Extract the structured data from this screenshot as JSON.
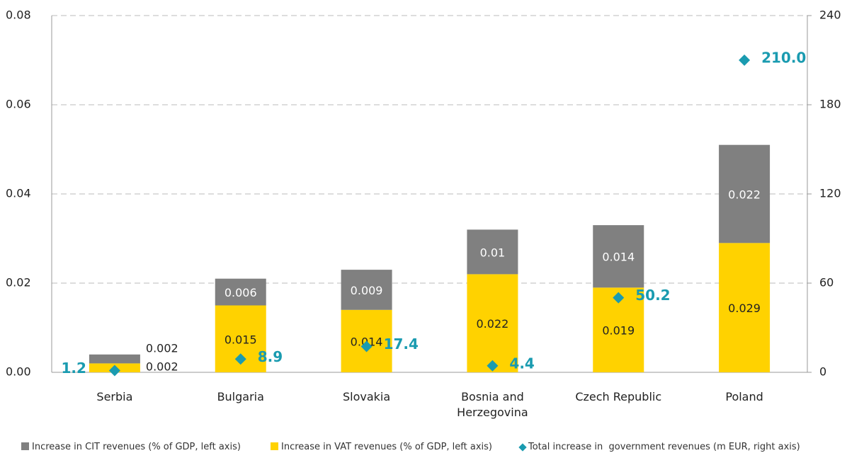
{
  "chart_data": {
    "type": "bar",
    "categories": [
      "Serbia",
      "Bulgaria",
      "Slovakia",
      "Bosnia and Herzegovina",
      "Czech Republic",
      "Poland"
    ],
    "series": [
      {
        "name": "Increase in CIT revenues (% of GDP, left axis)",
        "color": "#808080",
        "values": [
          0.002,
          0.006,
          0.009,
          0.01,
          0.014,
          0.022
        ]
      },
      {
        "name": "Increase in VAT revenues (% of GDP, left axis)",
        "color": "#ffd200",
        "values": [
          0.002,
          0.015,
          0.014,
          0.022,
          0.019,
          0.029
        ]
      },
      {
        "name": "Total increase in  government revenues (m EUR, right axis)",
        "color": "#1a9bb0",
        "axis": "y2",
        "type": "scatter",
        "values": [
          1.2,
          8.9,
          17.4,
          4.4,
          50.2,
          210.0
        ],
        "value_labels": [
          "1.2",
          "8.9",
          "17.4",
          "4.4",
          "50.2",
          "210.0"
        ]
      }
    ],
    "ylim": [
      0,
      0.08
    ],
    "yticks": [
      {
        "value": 0,
        "label": "0.00"
      },
      0.02,
      0.04,
      0.06,
      0.08
    ],
    "y2lim": [
      0,
      240
    ],
    "y2ticks": [
      0,
      60,
      120,
      180,
      240
    ],
    "grid": true,
    "legend": "bottom"
  }
}
